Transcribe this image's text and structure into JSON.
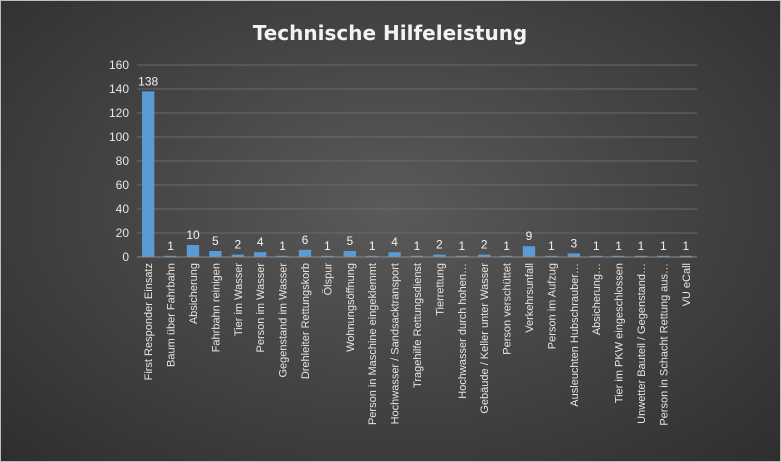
{
  "chart_data": {
    "type": "bar",
    "title": "Technische Hilfeleistung",
    "xlabel": "",
    "ylabel": "",
    "ylim": [
      0,
      160
    ],
    "yticks": [
      0,
      20,
      40,
      60,
      80,
      100,
      120,
      140,
      160
    ],
    "grid": true,
    "bar_color": "#5b9bd5",
    "categories": [
      "First Responder Einsatz",
      "Baum über Fahrbahn",
      "Absicherung",
      "Fahrbahn reinigen",
      "Tier im Wasser",
      "Person im Wasser",
      "Gegenstand im Wasser",
      "Drehleiter Rettungskorb",
      "Ölspur",
      "Wohnungsöffnung",
      "Person in Maschine eingeklemmt",
      "Hochwasser / Sandsacktransport",
      "Tragehilfe Rettungsdienst",
      "Tierrettung",
      "Hochwasser durch hohen…",
      "Gebäude / Keller unter Wasser",
      "Person verschüttet",
      "Verkehrsunfall",
      "Person im Aufzug",
      "Ausleuchten Hubschrauber…",
      "Absicherung…",
      "Tier im PKW eingeschlossen",
      "Unwetter Bauteil / Gegenstand…",
      "Person in Schacht Rettung aus…",
      "VU eCall"
    ],
    "values": [
      138,
      1,
      10,
      5,
      2,
      4,
      1,
      6,
      1,
      5,
      1,
      4,
      1,
      2,
      1,
      2,
      1,
      9,
      1,
      3,
      1,
      1,
      1,
      1,
      1
    ]
  }
}
